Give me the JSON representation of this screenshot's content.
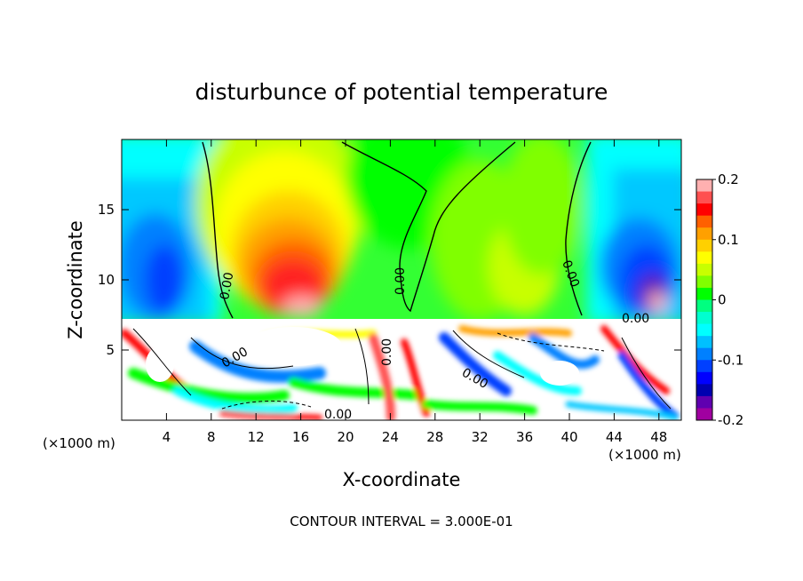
{
  "chart_data": {
    "type": "heatmap",
    "title": "disturbunce of potential temperature",
    "xlabel": "X-coordinate",
    "ylabel": "Z-coordinate",
    "x_unit": "(×1000 m)",
    "z_unit": "(×1000 m)",
    "xlim": [
      0,
      50
    ],
    "ylim": [
      0,
      20
    ],
    "xticks": [
      "4",
      "8",
      "12",
      "16",
      "20",
      "24",
      "28",
      "32",
      "36",
      "40",
      "44",
      "48"
    ],
    "yticks": [
      "5",
      "10",
      "15"
    ],
    "colorbar": {
      "min": -0.2,
      "max": 0.2,
      "ticks": [
        "0.2",
        "0.1",
        "0",
        "-0.1",
        "-0.2"
      ],
      "colors": [
        "#ffb0b0",
        "#ff5050",
        "#ff0000",
        "#ff6000",
        "#ffa000",
        "#ffd000",
        "#ffff00",
        "#c8ff00",
        "#80ff00",
        "#00ff00",
        "#00ff80",
        "#00ffd0",
        "#00ffff",
        "#00c0ff",
        "#0080ff",
        "#0040ff",
        "#0000ff",
        "#0000b0",
        "#6000b0",
        "#a000a0"
      ]
    },
    "contour_labels": [
      "0.00",
      "0.00",
      "0.00",
      "0.00",
      "0.00",
      "0.00",
      "0.00",
      "0.00",
      "0.00",
      "0.00"
    ],
    "footer": "CONTOUR INTERVAL = 3.000E-01"
  }
}
